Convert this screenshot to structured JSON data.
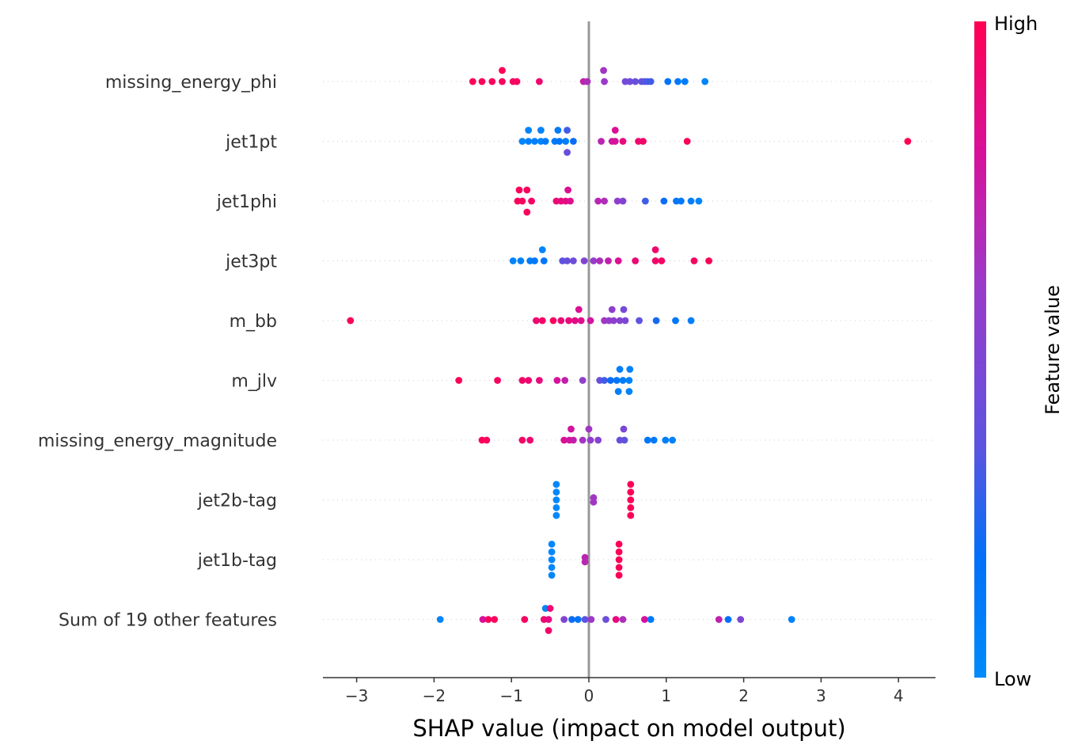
{
  "chart_data": {
    "type": "scatter",
    "subtype": "shap-beeswarm",
    "xlabel": "SHAP value (impact on model output)",
    "xlim": [
      -3.4,
      4.5
    ],
    "xticks": [
      -3,
      -2,
      -1,
      0,
      1,
      2,
      3,
      4
    ],
    "xtick_labels": [
      "−3",
      "−2",
      "−1",
      "0",
      "1",
      "2",
      "3",
      "4"
    ],
    "colorbar": {
      "title": "Feature value",
      "high_label": "High",
      "low_label": "Low",
      "low_color": "#008bfb",
      "high_color": "#ff0052"
    },
    "zero_line_color": "#999999",
    "features": [
      {
        "name": "missing_energy_phi",
        "points": [
          {
            "x": -1.5,
            "v": 0.98
          },
          {
            "x": -1.38,
            "v": 0.98
          },
          {
            "x": -1.25,
            "v": 0.97
          },
          {
            "x": -1.12,
            "v": 0.99,
            "dy": -1
          },
          {
            "x": -1.12,
            "v": 0.96
          },
          {
            "x": -0.98,
            "v": 0.95
          },
          {
            "x": -0.93,
            "v": 0.96
          },
          {
            "x": -0.64,
            "v": 0.92
          },
          {
            "x": -0.07,
            "v": 0.72
          },
          {
            "x": -0.02,
            "v": 0.66
          },
          {
            "x": 0.19,
            "v": 0.62,
            "dy": -1
          },
          {
            "x": 0.2,
            "v": 0.6
          },
          {
            "x": 0.47,
            "v": 0.45
          },
          {
            "x": 0.53,
            "v": 0.42
          },
          {
            "x": 0.6,
            "v": 0.4
          },
          {
            "x": 0.68,
            "v": 0.38
          },
          {
            "x": 0.72,
            "v": 0.34
          },
          {
            "x": 0.76,
            "v": 0.32
          },
          {
            "x": 0.8,
            "v": 0.3
          },
          {
            "x": 1.02,
            "v": 0.16
          },
          {
            "x": 1.15,
            "v": 0.12
          },
          {
            "x": 1.24,
            "v": 0.1
          },
          {
            "x": 1.5,
            "v": 0.04
          }
        ]
      },
      {
        "name": "jet1pt",
        "points": [
          {
            "x": -0.78,
            "v": 0.04,
            "dy": -1
          },
          {
            "x": -0.62,
            "v": 0.06,
            "dy": -1
          },
          {
            "x": -0.4,
            "v": 0.1,
            "dy": -1
          },
          {
            "x": -0.28,
            "v": 0.3,
            "dy": -1
          },
          {
            "x": 0.34,
            "v": 0.82,
            "dy": -1
          },
          {
            "x": -0.86,
            "v": 0.04
          },
          {
            "x": -0.78,
            "v": 0.06
          },
          {
            "x": -0.7,
            "v": 0.08
          },
          {
            "x": -0.62,
            "v": 0.05
          },
          {
            "x": -0.56,
            "v": 0.1
          },
          {
            "x": -0.44,
            "v": 0.12
          },
          {
            "x": -0.38,
            "v": 0.14
          },
          {
            "x": -0.3,
            "v": 0.08
          },
          {
            "x": -0.2,
            "v": 0.2
          },
          {
            "x": 0.16,
            "v": 0.7
          },
          {
            "x": 0.3,
            "v": 0.76
          },
          {
            "x": 0.34,
            "v": 0.8
          },
          {
            "x": 0.44,
            "v": 0.88
          },
          {
            "x": 0.64,
            "v": 0.92
          },
          {
            "x": 0.7,
            "v": 0.94
          },
          {
            "x": 1.27,
            "v": 0.98
          },
          {
            "x": 4.12,
            "v": 1.0
          },
          {
            "x": -0.28,
            "v": 0.4,
            "dy": 1
          }
        ]
      },
      {
        "name": "jet1phi",
        "points": [
          {
            "x": -0.9,
            "v": 0.98,
            "dy": -1
          },
          {
            "x": -0.8,
            "v": 0.97,
            "dy": -1
          },
          {
            "x": -0.27,
            "v": 0.82,
            "dy": -1
          },
          {
            "x": -0.92,
            "v": 0.98
          },
          {
            "x": -0.86,
            "v": 0.96
          },
          {
            "x": -0.74,
            "v": 0.95
          },
          {
            "x": -0.42,
            "v": 0.9
          },
          {
            "x": -0.36,
            "v": 0.88
          },
          {
            "x": -0.3,
            "v": 0.86
          },
          {
            "x": -0.24,
            "v": 0.84
          },
          {
            "x": 0.12,
            "v": 0.7
          },
          {
            "x": 0.2,
            "v": 0.66
          },
          {
            "x": 0.37,
            "v": 0.56
          },
          {
            "x": 0.44,
            "v": 0.5
          },
          {
            "x": 0.73,
            "v": 0.3
          },
          {
            "x": 0.97,
            "v": 0.2
          },
          {
            "x": 1.13,
            "v": 0.14
          },
          {
            "x": 1.19,
            "v": 0.12
          },
          {
            "x": 1.32,
            "v": 0.08
          },
          {
            "x": 1.42,
            "v": 0.05
          },
          {
            "x": -0.8,
            "v": 0.97,
            "dy": 1
          }
        ]
      },
      {
        "name": "jet3pt",
        "points": [
          {
            "x": -0.6,
            "v": 0.05,
            "dy": -1
          },
          {
            "x": 0.86,
            "v": 0.92,
            "dy": -1
          },
          {
            "x": -0.98,
            "v": 0.05
          },
          {
            "x": -0.88,
            "v": 0.06
          },
          {
            "x": -0.76,
            "v": 0.1
          },
          {
            "x": -0.7,
            "v": 0.12
          },
          {
            "x": -0.58,
            "v": 0.14
          },
          {
            "x": -0.34,
            "v": 0.36
          },
          {
            "x": -0.28,
            "v": 0.4
          },
          {
            "x": -0.2,
            "v": 0.42
          },
          {
            "x": -0.06,
            "v": 0.5
          },
          {
            "x": 0.06,
            "v": 0.58
          },
          {
            "x": 0.14,
            "v": 0.66
          },
          {
            "x": 0.25,
            "v": 0.72
          },
          {
            "x": 0.38,
            "v": 0.82
          },
          {
            "x": 0.6,
            "v": 0.9
          },
          {
            "x": 0.86,
            "v": 0.94
          },
          {
            "x": 0.94,
            "v": 0.95
          },
          {
            "x": 1.36,
            "v": 0.96
          },
          {
            "x": 1.55,
            "v": 0.98
          }
        ]
      },
      {
        "name": "m_bb",
        "points": [
          {
            "x": -0.13,
            "v": 0.82,
            "dy": -1
          },
          {
            "x": 0.3,
            "v": 0.55,
            "dy": -1
          },
          {
            "x": 0.45,
            "v": 0.45,
            "dy": -1
          },
          {
            "x": -3.08,
            "v": 0.98
          },
          {
            "x": -0.68,
            "v": 0.92
          },
          {
            "x": -0.6,
            "v": 0.94
          },
          {
            "x": -0.46,
            "v": 0.96
          },
          {
            "x": -0.36,
            "v": 0.9
          },
          {
            "x": -0.26,
            "v": 0.88
          },
          {
            "x": -0.18,
            "v": 0.86
          },
          {
            "x": -0.1,
            "v": 0.84
          },
          {
            "x": 0.02,
            "v": 0.78
          },
          {
            "x": 0.2,
            "v": 0.62
          },
          {
            "x": 0.26,
            "v": 0.58
          },
          {
            "x": 0.32,
            "v": 0.54
          },
          {
            "x": 0.4,
            "v": 0.52
          },
          {
            "x": 0.47,
            "v": 0.48
          },
          {
            "x": 0.65,
            "v": 0.36
          },
          {
            "x": 0.87,
            "v": 0.22
          },
          {
            "x": 1.12,
            "v": 0.14
          },
          {
            "x": 1.32,
            "v": 0.08
          }
        ]
      },
      {
        "name": "m_jlv",
        "points": [
          {
            "x": 0.4,
            "v": 0.08,
            "dy": -1
          },
          {
            "x": 0.53,
            "v": 0.06,
            "dy": -1
          },
          {
            "x": -1.68,
            "v": 0.98
          },
          {
            "x": -1.18,
            "v": 0.96
          },
          {
            "x": -0.86,
            "v": 0.94
          },
          {
            "x": -0.78,
            "v": 0.92
          },
          {
            "x": -0.64,
            "v": 0.88
          },
          {
            "x": -0.41,
            "v": 0.8
          },
          {
            "x": -0.31,
            "v": 0.72
          },
          {
            "x": -0.08,
            "v": 0.56
          },
          {
            "x": 0.14,
            "v": 0.4
          },
          {
            "x": 0.2,
            "v": 0.3
          },
          {
            "x": 0.28,
            "v": 0.2
          },
          {
            "x": 0.36,
            "v": 0.14
          },
          {
            "x": 0.44,
            "v": 0.1
          },
          {
            "x": 0.52,
            "v": 0.06
          },
          {
            "x": 0.38,
            "v": 0.08,
            "dy": 1
          },
          {
            "x": 0.52,
            "v": 0.05,
            "dy": 1
          }
        ]
      },
      {
        "name": "missing_energy_magnitude",
        "points": [
          {
            "x": -0.23,
            "v": 0.78,
            "dy": -1
          },
          {
            "x": 0.0,
            "v": 0.62,
            "dy": -1
          },
          {
            "x": 0.45,
            "v": 0.46,
            "dy": -1
          },
          {
            "x": -1.38,
            "v": 0.98
          },
          {
            "x": -1.32,
            "v": 0.97
          },
          {
            "x": -0.86,
            "v": 0.94
          },
          {
            "x": -0.76,
            "v": 0.92
          },
          {
            "x": -0.32,
            "v": 0.82
          },
          {
            "x": -0.25,
            "v": 0.78
          },
          {
            "x": -0.2,
            "v": 0.74
          },
          {
            "x": -0.08,
            "v": 0.62
          },
          {
            "x": 0.02,
            "v": 0.56
          },
          {
            "x": 0.12,
            "v": 0.52
          },
          {
            "x": 0.4,
            "v": 0.4
          },
          {
            "x": 0.46,
            "v": 0.36
          },
          {
            "x": 0.76,
            "v": 0.14
          },
          {
            "x": 0.84,
            "v": 0.12
          },
          {
            "x": 0.99,
            "v": 0.08
          },
          {
            "x": 1.08,
            "v": 0.06
          }
        ]
      },
      {
        "name": "jet2b-tag",
        "points": [
          {
            "x": -0.42,
            "v": 0.03,
            "dy": -1.4
          },
          {
            "x": -0.42,
            "v": 0.03,
            "dy": -0.7
          },
          {
            "x": -0.42,
            "v": 0.03
          },
          {
            "x": -0.42,
            "v": 0.03,
            "dy": 0.7
          },
          {
            "x": -0.42,
            "v": 0.03,
            "dy": 1.4
          },
          {
            "x": 0.06,
            "v": 0.62,
            "dy": -0.2
          },
          {
            "x": 0.06,
            "v": 0.62,
            "dy": 0.2
          },
          {
            "x": 0.54,
            "v": 0.99,
            "dy": -1.4
          },
          {
            "x": 0.54,
            "v": 0.99,
            "dy": -0.7
          },
          {
            "x": 0.54,
            "v": 0.99
          },
          {
            "x": 0.54,
            "v": 0.99,
            "dy": 0.7
          },
          {
            "x": 0.54,
            "v": 0.99,
            "dy": 1.4
          }
        ]
      },
      {
        "name": "jet1b-tag",
        "points": [
          {
            "x": -0.48,
            "v": 0.03,
            "dy": -1.4
          },
          {
            "x": -0.48,
            "v": 0.03,
            "dy": -0.7
          },
          {
            "x": -0.48,
            "v": 0.03
          },
          {
            "x": -0.48,
            "v": 0.03,
            "dy": 0.7
          },
          {
            "x": -0.48,
            "v": 0.03,
            "dy": 1.4
          },
          {
            "x": -0.05,
            "v": 0.7,
            "dy": -0.2
          },
          {
            "x": -0.05,
            "v": 0.7,
            "dy": 0.2
          },
          {
            "x": 0.39,
            "v": 0.99,
            "dy": -1.4
          },
          {
            "x": 0.39,
            "v": 0.99,
            "dy": -0.7
          },
          {
            "x": 0.39,
            "v": 0.99
          },
          {
            "x": 0.39,
            "v": 0.99,
            "dy": 0.7
          },
          {
            "x": 0.39,
            "v": 0.99,
            "dy": 1.4
          }
        ]
      },
      {
        "name": "Sum of 19 other features",
        "points": [
          {
            "x": -0.56,
            "v": 0.04,
            "dy": -1
          },
          {
            "x": -0.5,
            "v": 0.9,
            "dy": -1
          },
          {
            "x": -1.92,
            "v": 0.04
          },
          {
            "x": -1.37,
            "v": 0.8
          },
          {
            "x": -1.3,
            "v": 0.96
          },
          {
            "x": -1.22,
            "v": 0.97
          },
          {
            "x": -0.83,
            "v": 0.96
          },
          {
            "x": -0.58,
            "v": 0.92
          },
          {
            "x": -0.52,
            "v": 0.86
          },
          {
            "x": -0.32,
            "v": 0.5
          },
          {
            "x": -0.22,
            "v": 0.2
          },
          {
            "x": -0.14,
            "v": 0.16
          },
          {
            "x": -0.05,
            "v": 0.36
          },
          {
            "x": 0.03,
            "v": 0.6
          },
          {
            "x": 0.22,
            "v": 0.42
          },
          {
            "x": 0.35,
            "v": 0.88
          },
          {
            "x": 0.44,
            "v": 0.66
          },
          {
            "x": 0.72,
            "v": 0.8
          },
          {
            "x": 0.8,
            "v": 0.12
          },
          {
            "x": 1.68,
            "v": 0.72
          },
          {
            "x": 1.8,
            "v": 0.18
          },
          {
            "x": 1.96,
            "v": 0.48
          },
          {
            "x": 2.62,
            "v": 0.06
          },
          {
            "x": -0.52,
            "v": 0.94,
            "dy": 1
          }
        ]
      }
    ]
  }
}
